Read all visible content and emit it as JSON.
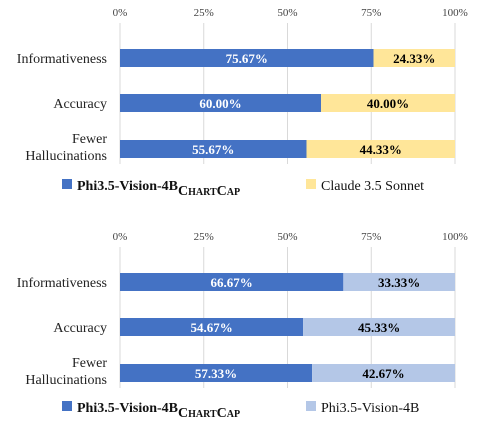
{
  "chart_data": [
    {
      "type": "bar",
      "orientation": "horizontal",
      "stacked": true,
      "percent": true,
      "categories": [
        "Informativeness",
        "Accuracy",
        "Fewer Hallucinations"
      ],
      "category_lines": [
        [
          "Informativeness"
        ],
        [
          "Accuracy"
        ],
        [
          "Fewer",
          "Hallucinations"
        ]
      ],
      "xticks": [
        "0%",
        "25%",
        "50%",
        "75%",
        "100%"
      ],
      "xlim": [
        0,
        100
      ],
      "series": [
        {
          "legend_main": "Phi3.5-Vision-4B",
          "legend_sub": "CHARTCAP",
          "color": "#4472c4",
          "label_color": "#ffffff",
          "values": [
            75.67,
            60.0,
            55.67
          ],
          "labels": [
            "75.67%",
            "60.00%",
            "55.67%"
          ]
        },
        {
          "legend_main": "Claude 3.5 Sonnet",
          "legend_sub": "",
          "color": "#ffe699",
          "label_color": "#000000",
          "values": [
            24.33,
            40.0,
            44.33
          ],
          "labels": [
            "24.33%",
            "40.00%",
            "44.33%"
          ]
        }
      ]
    },
    {
      "type": "bar",
      "orientation": "horizontal",
      "stacked": true,
      "percent": true,
      "categories": [
        "Informativeness",
        "Accuracy",
        "Fewer Hallucinations"
      ],
      "category_lines": [
        [
          "Informativeness"
        ],
        [
          "Accuracy"
        ],
        [
          "Fewer",
          "Hallucinations"
        ]
      ],
      "xticks": [
        "0%",
        "25%",
        "50%",
        "75%",
        "100%"
      ],
      "xlim": [
        0,
        100
      ],
      "series": [
        {
          "legend_main": "Phi3.5-Vision-4B",
          "legend_sub": "CHARTCAP",
          "color": "#4472c4",
          "label_color": "#ffffff",
          "values": [
            66.67,
            54.67,
            57.33
          ],
          "labels": [
            "66.67%",
            "54.67%",
            "57.33%"
          ]
        },
        {
          "legend_main": "Phi3.5-Vision-4B",
          "legend_sub": "",
          "color": "#b4c7e7",
          "label_color": "#000000",
          "values": [
            33.33,
            45.33,
            42.67
          ],
          "labels": [
            "33.33%",
            "45.33%",
            "42.67%"
          ]
        }
      ]
    }
  ]
}
